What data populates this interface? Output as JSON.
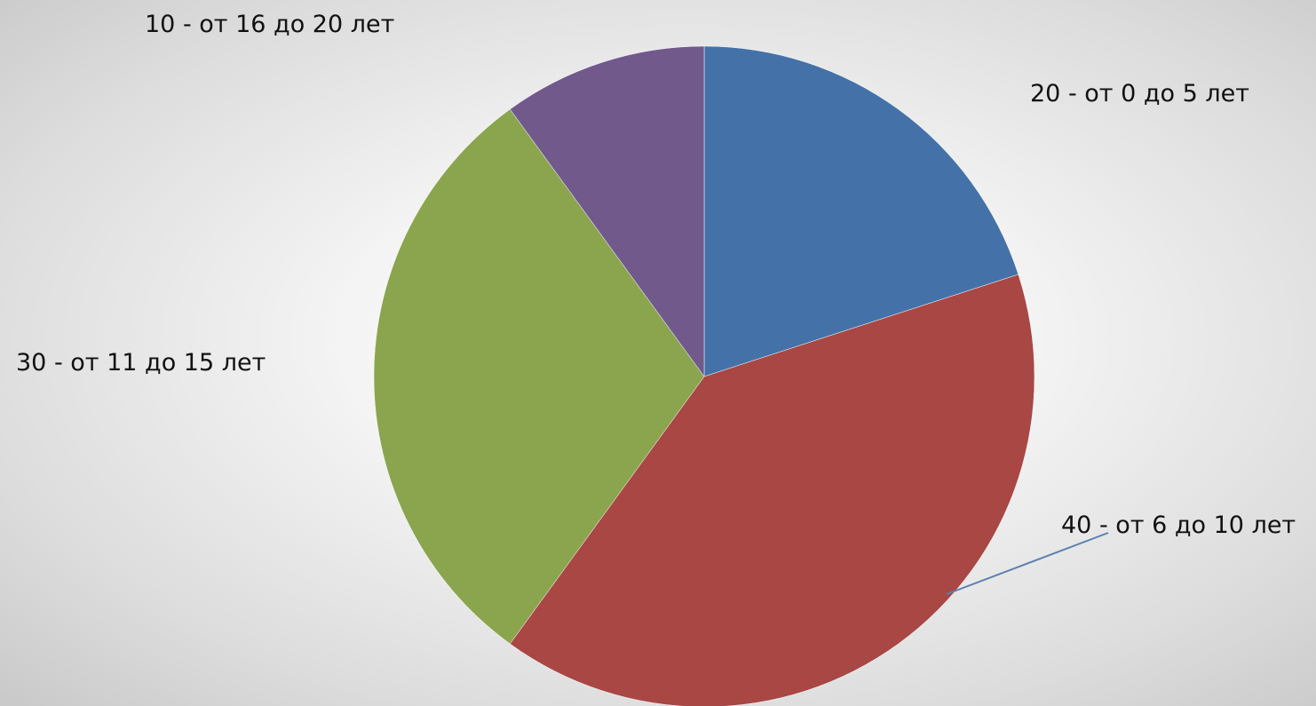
{
  "chart_data": {
    "type": "pie",
    "start_angle_deg": 0,
    "direction": "clockwise",
    "slices": [
      {
        "label": "20 - от 0 до 5 лет",
        "value": 20,
        "color": "#4472a8"
      },
      {
        "label": "40 - от 6 до 10 лет",
        "value": 40,
        "color": "#a84744"
      },
      {
        "label": "30 - от 11 до 15 лет",
        "value": 30,
        "color": "#8aa54e"
      },
      {
        "label": "10  - от 16 до 20 лет",
        "value": 10,
        "color": "#71598c"
      }
    ],
    "leader_line_color": "#5b7fb0",
    "legend": "none",
    "title": ""
  }
}
